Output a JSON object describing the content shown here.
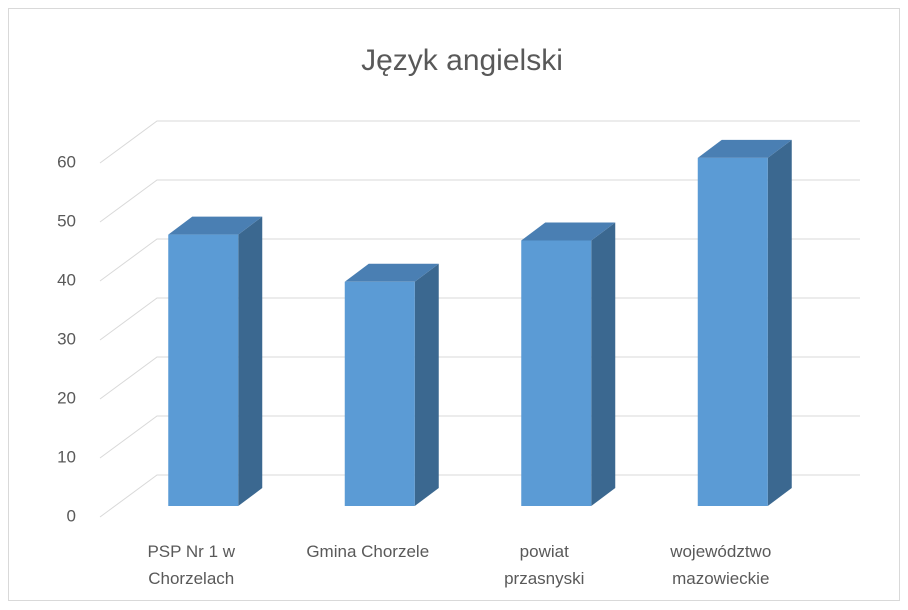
{
  "chart_data": {
    "type": "bar3d",
    "title": "Język angielski",
    "categories": [
      "PSP Nr 1 w Chorzelach",
      "Gmina Chorzele",
      "powiat przasnyski",
      "województwo mazowieckie"
    ],
    "values": [
      46,
      38,
      45,
      59
    ],
    "color": "#5b9bd5",
    "ylim": [
      0,
      60
    ],
    "yticks": [
      0,
      10,
      20,
      30,
      40,
      50,
      60
    ],
    "grid": true
  }
}
